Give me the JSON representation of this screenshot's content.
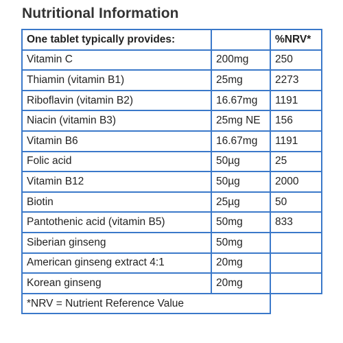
{
  "title": "Nutritional Information",
  "header": {
    "label": "One tablet typically provides:",
    "amount": "",
    "nrv": "%NRV*"
  },
  "rows": [
    {
      "name": "Vitamin C",
      "amount": "200mg",
      "nrv": "250"
    },
    {
      "name": "Thiamin (vitamin B1)",
      "amount": "25mg",
      "nrv": "2273"
    },
    {
      "name": "Riboflavin (vitamin B2)",
      "amount": "16.67mg",
      "nrv": "1191"
    },
    {
      "name": "Niacin (vitamin B3)",
      "amount": "25mg NE",
      "nrv": "156"
    },
    {
      "name": "Vitamin B6",
      "amount": "16.67mg",
      "nrv": "1191"
    },
    {
      "name": "Folic acid",
      "amount": "50µg",
      "nrv": "25"
    },
    {
      "name": "Vitamin B12",
      "amount": "50µg",
      "nrv": "2000"
    },
    {
      "name": "Biotin",
      "amount": "25µg",
      "nrv": "50"
    },
    {
      "name": "Pantothenic acid (vitamin B5)",
      "amount": "50mg",
      "nrv": "833"
    },
    {
      "name": "Siberian ginseng",
      "amount": "50mg",
      "nrv": ""
    },
    {
      "name": "American ginseng extract 4:1",
      "amount": "20mg",
      "nrv": ""
    },
    {
      "name": "Korean ginseng",
      "amount": "20mg",
      "nrv": ""
    }
  ],
  "footnote": "*NRV = Nutrient Reference Value",
  "colors": {
    "border": "#3a78c9",
    "text": "#222222"
  }
}
